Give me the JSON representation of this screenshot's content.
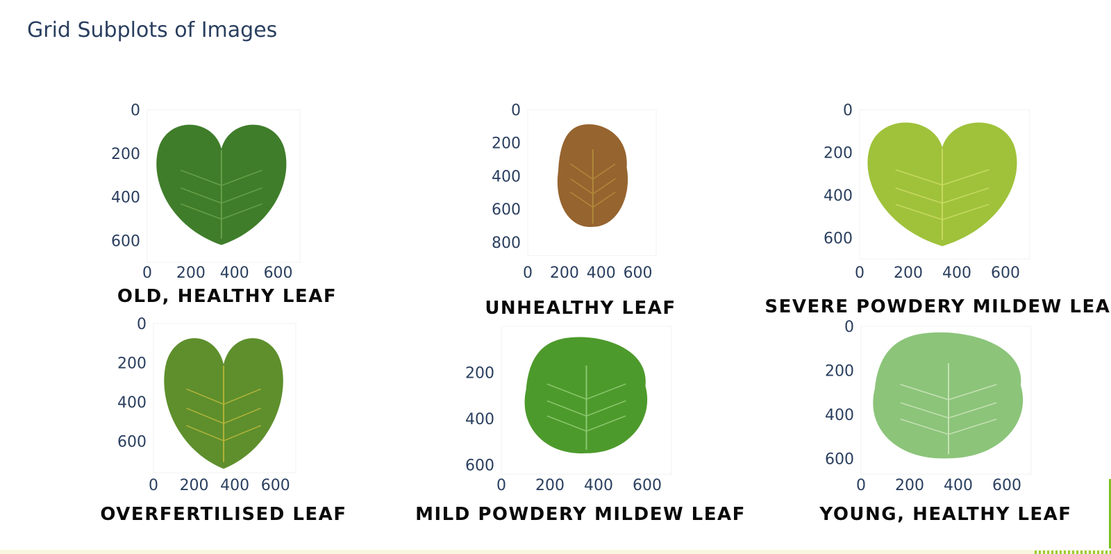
{
  "title": "Grid Subplots of Images",
  "chart_data": {
    "type": "image-grid",
    "rows": 2,
    "cols": 3,
    "subplots": [
      {
        "title": "OLD, HEALTHY LEAF",
        "x_ticks": [
          0,
          200,
          400,
          600
        ],
        "y_ticks": [
          0,
          200,
          400,
          600
        ],
        "xlim": [
          0,
          700
        ],
        "ylim": [
          0,
          700
        ],
        "image": {
          "kind": "heart",
          "fill": "#3f7d2a",
          "vein": "#6aa04a",
          "xr": [
            30,
            650
          ],
          "yr": [
            40,
            620
          ]
        }
      },
      {
        "title": "UNHEALTHY LEAF",
        "x_ticks": [
          0,
          200,
          400,
          600
        ],
        "y_ticks": [
          0,
          200,
          400,
          600,
          800
        ],
        "xlim": [
          0,
          700
        ],
        "ylim": [
          0,
          880
        ],
        "image": {
          "kind": "blob",
          "fill": "#96642f",
          "vein": "#b0893a",
          "xr": [
            150,
            560
          ],
          "yr": [
            80,
            720
          ]
        }
      },
      {
        "title": "SEVERE POWDERY MILDEW LEAF",
        "x_ticks": [
          0,
          200,
          400,
          600
        ],
        "y_ticks": [
          0,
          200,
          400,
          600
        ],
        "xlim": [
          0,
          700
        ],
        "ylim": [
          0,
          700
        ],
        "image": {
          "kind": "heart",
          "fill": "#9fc23a",
          "vein": "#c8d860",
          "xr": [
            20,
            660
          ],
          "yr": [
            30,
            640
          ]
        }
      },
      {
        "title": "OVERFERTILISED LEAF",
        "x_ticks": [
          0,
          200,
          400,
          600
        ],
        "y_ticks": [
          0,
          200,
          400,
          600
        ],
        "xlim": [
          0,
          700
        ],
        "ylim": [
          0,
          760
        ],
        "image": {
          "kind": "heart",
          "fill": "#5e8f2c",
          "vein": "#b2b43a",
          "xr": [
            40,
            650
          ],
          "yr": [
            40,
            740
          ]
        }
      },
      {
        "title": "MILD POWDERY MILDEW LEAF",
        "x_ticks": [
          0,
          200,
          400,
          600
        ],
        "y_ticks": [
          200,
          400,
          600
        ],
        "xlim": [
          0,
          700
        ],
        "ylim": [
          0,
          640
        ],
        "image": {
          "kind": "blob",
          "fill": "#4d9a2c",
          "vein": "#8cc870",
          "xr": [
            80,
            620
          ],
          "yr": [
            40,
            560
          ]
        }
      },
      {
        "title": "YOUNG, HEALTHY LEAF",
        "x_ticks": [
          0,
          200,
          400,
          600
        ],
        "y_ticks": [
          0,
          200,
          400,
          600
        ],
        "xlim": [
          0,
          700
        ],
        "ylim": [
          0,
          670
        ],
        "image": {
          "kind": "blob",
          "fill": "#8cc47a",
          "vein": "#c5e3b4",
          "xr": [
            30,
            690
          ],
          "yr": [
            20,
            610
          ]
        }
      }
    ]
  }
}
